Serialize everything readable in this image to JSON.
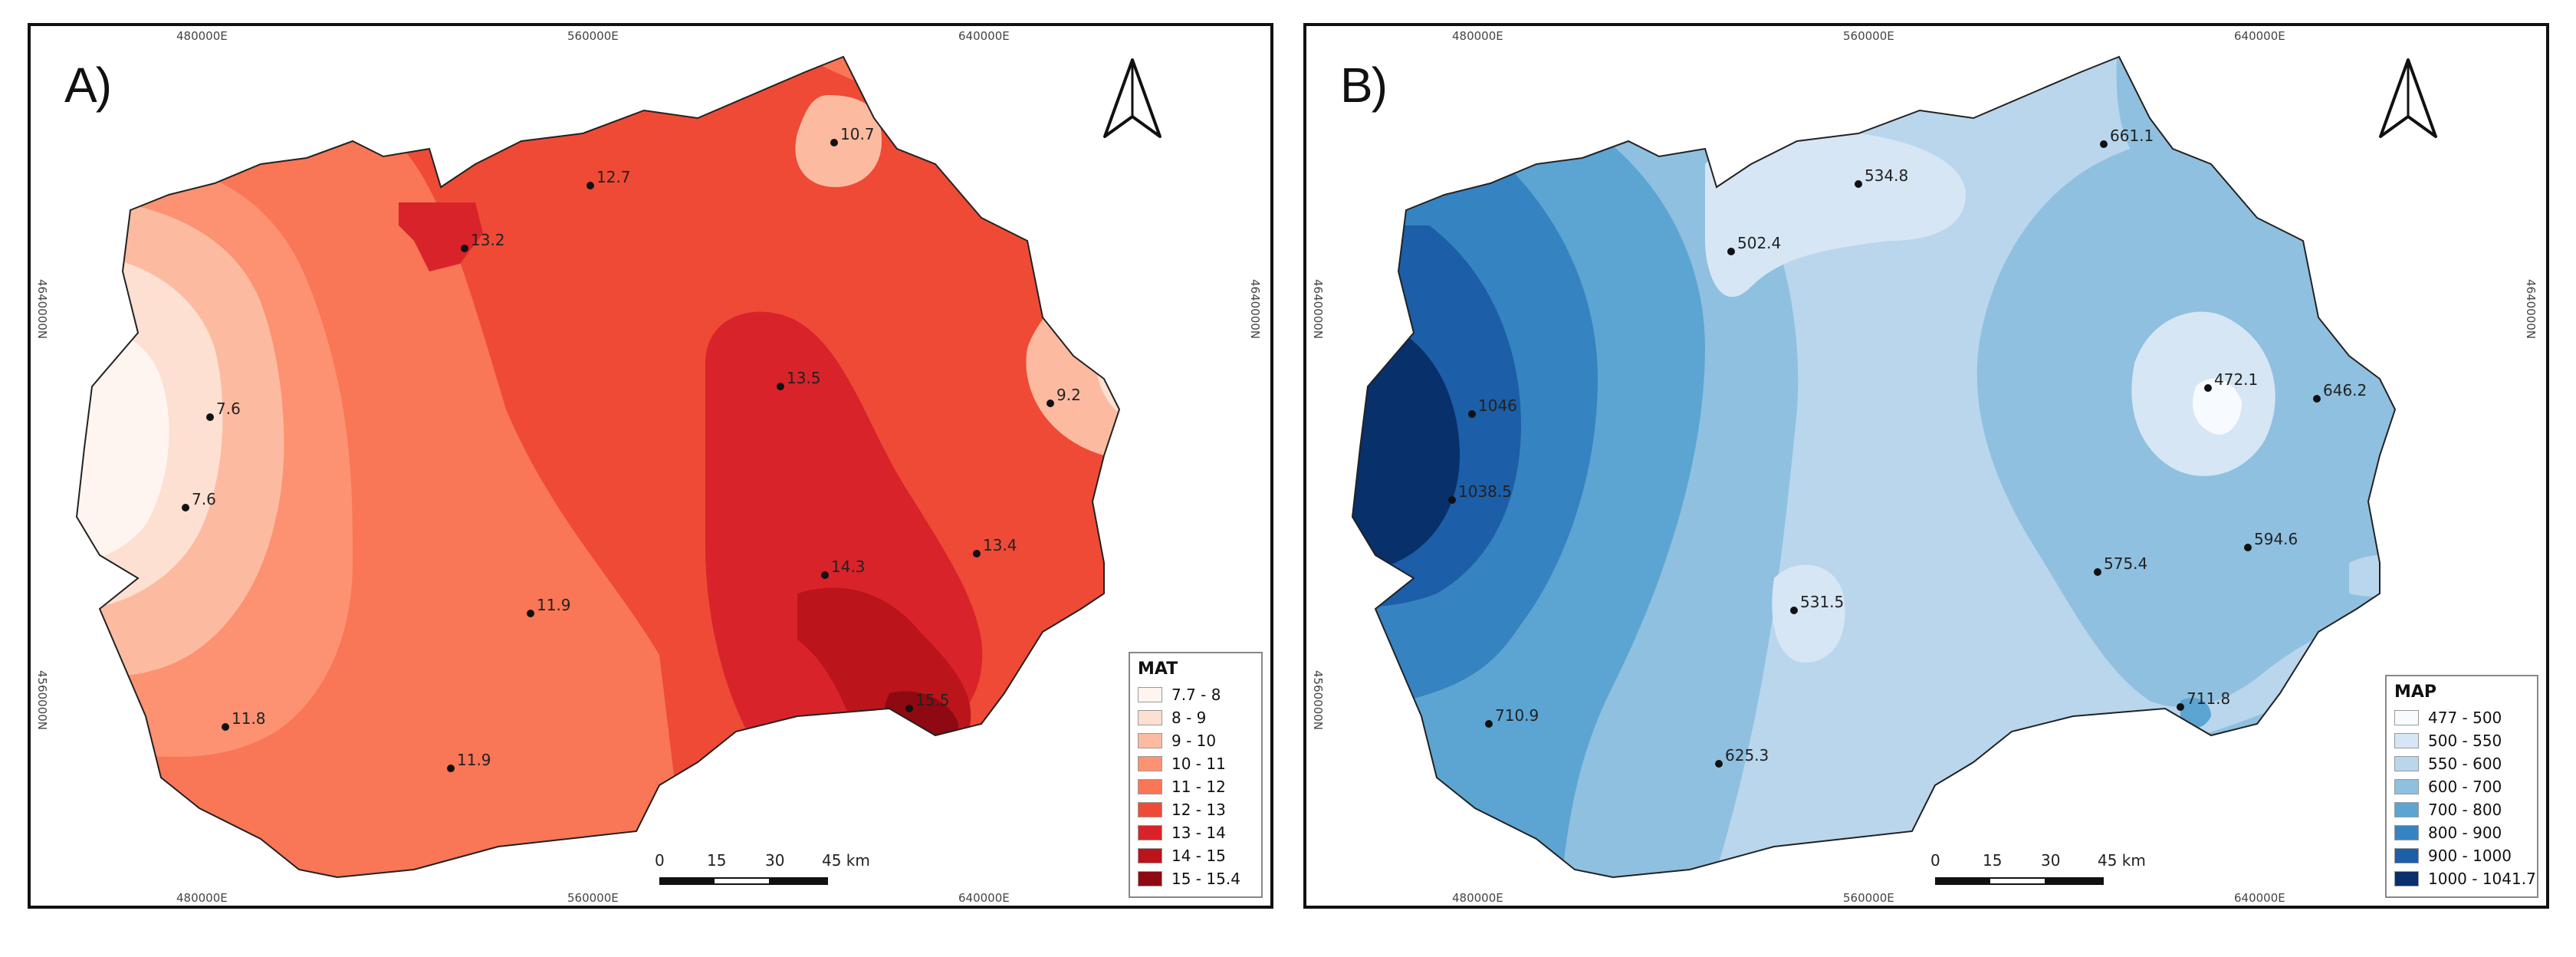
{
  "panels": [
    {
      "id": "A",
      "label": "A)",
      "coords_top": [
        "480000E",
        "560000E",
        "640000E"
      ],
      "coords_bottom": [
        "480000E",
        "560000E",
        "640000E"
      ],
      "coords_side": [
        "4640000N",
        "4560000N"
      ],
      "legend": {
        "title": "MAT",
        "classes": [
          {
            "label": "7.7 - 8",
            "color": "#fff5f0"
          },
          {
            "label": "8 - 9",
            "color": "#fde0d2"
          },
          {
            "label": "9 - 10",
            "color": "#fcbba1"
          },
          {
            "label": "10 - 11",
            "color": "#fc9272"
          },
          {
            "label": "11 - 12",
            "color": "#f97656"
          },
          {
            "label": "12 - 13",
            "color": "#ef4a36"
          },
          {
            "label": "13 - 14",
            "color": "#d9232a"
          },
          {
            "label": "14 - 15",
            "color": "#bb141a"
          },
          {
            "label": "15 - 15.4",
            "color": "#8f0912"
          }
        ]
      },
      "stations": [
        "10.7",
        "12.7",
        "13.2",
        "7.6",
        "7.6",
        "13.5",
        "9.2",
        "14.3",
        "13.4",
        "11.9",
        "11.8",
        "11.9",
        "15.5"
      ]
    },
    {
      "id": "B",
      "label": "B)",
      "coords_top": [
        "480000E",
        "560000E",
        "640000E"
      ],
      "coords_bottom": [
        "480000E",
        "560000E",
        "640000E"
      ],
      "coords_side": [
        "4640000N",
        "4560000N"
      ],
      "legend": {
        "title": "MAP",
        "classes": [
          {
            "label": "477 - 500",
            "color": "#f7fbff"
          },
          {
            "label": "500 - 550",
            "color": "#d6e6f4"
          },
          {
            "label": "550 - 600",
            "color": "#b9d6ec"
          },
          {
            "label": "600 - 700",
            "color": "#8fc0e0"
          },
          {
            "label": "700 - 800",
            "color": "#5ca5d3"
          },
          {
            "label": "800 - 900",
            "color": "#3683c2"
          },
          {
            "label": "900 - 1000",
            "color": "#1c5ea8"
          },
          {
            "label": "1000 - 1041.7",
            "color": "#08306b"
          }
        ]
      },
      "stations": [
        "661.1",
        "534.8",
        "502.4",
        "472.1",
        "1046",
        "646.2",
        "1038.5",
        "594.6",
        "575.4",
        "531.5",
        "711.8",
        "710.9",
        "625.3"
      ]
    }
  ],
  "scale": {
    "ticks": [
      "0",
      "15",
      "30",
      "45 km"
    ]
  }
}
